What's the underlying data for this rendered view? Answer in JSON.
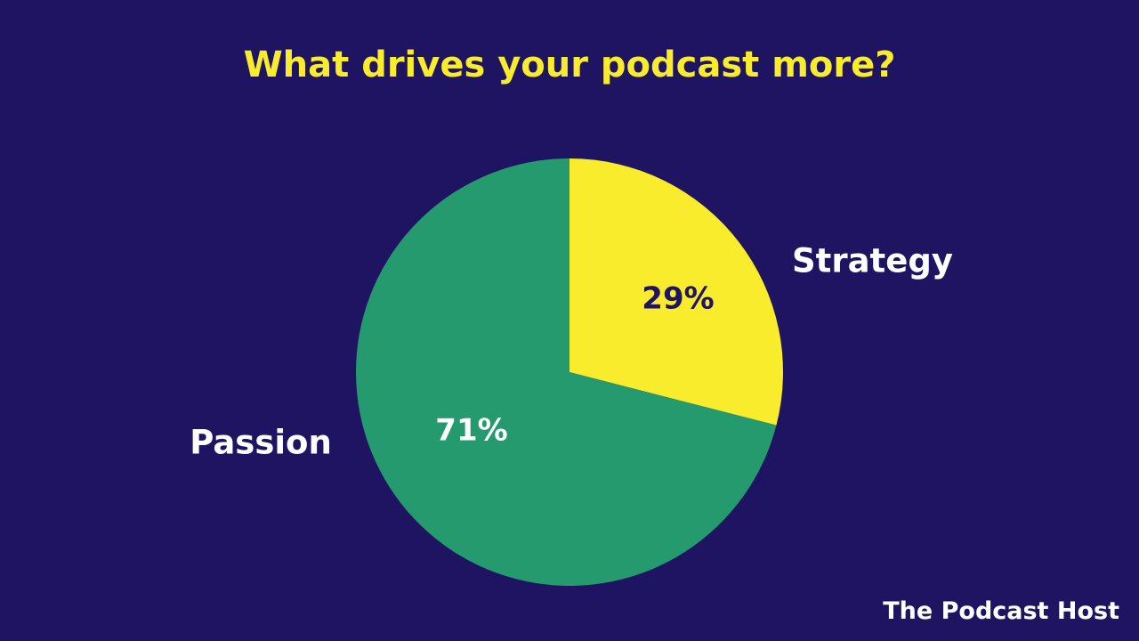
{
  "chart_data": {
    "type": "pie",
    "title": "What drives your podcast more?",
    "slices": [
      {
        "label": "Strategy",
        "value": 29,
        "value_label": "29%",
        "color": "#f9ec2c",
        "text_color": "#1e1461"
      },
      {
        "label": "Passion",
        "value": 71,
        "value_label": "71%",
        "color": "#249a6e",
        "text_color": "#ffffff"
      }
    ],
    "start": "12 o'clock",
    "direction": "clockwise",
    "legend": "none",
    "labels": "outside"
  },
  "colors": {
    "background": "#1e1461",
    "title": "#f9ec2c",
    "label": "#ffffff"
  },
  "brand": {
    "name": "The Podcast Host"
  }
}
